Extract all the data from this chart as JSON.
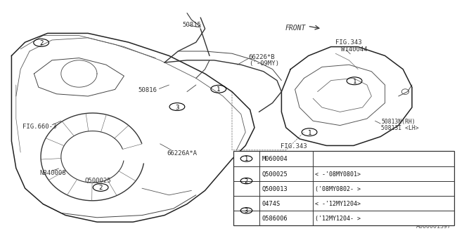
{
  "bg_color": "#ffffff",
  "diagram_id": "A660001397",
  "table_rows": [
    {
      "num": "1",
      "col1": "M060004",
      "col2": ""
    },
    {
      "num": "2",
      "col1": "Q500025",
      "col2": "< -'08MY0801>"
    },
    {
      "num": "2",
      "col1": "Q500013",
      "col2": "('08MY0802- >"
    },
    {
      "num": "3",
      "col1": "0474S",
      "col2": "< -'12MY1204>"
    },
    {
      "num": "3",
      "col1": "0586006",
      "col2": "('12MY1204- >"
    }
  ],
  "line_color": "#333333",
  "label_color": "#333333"
}
